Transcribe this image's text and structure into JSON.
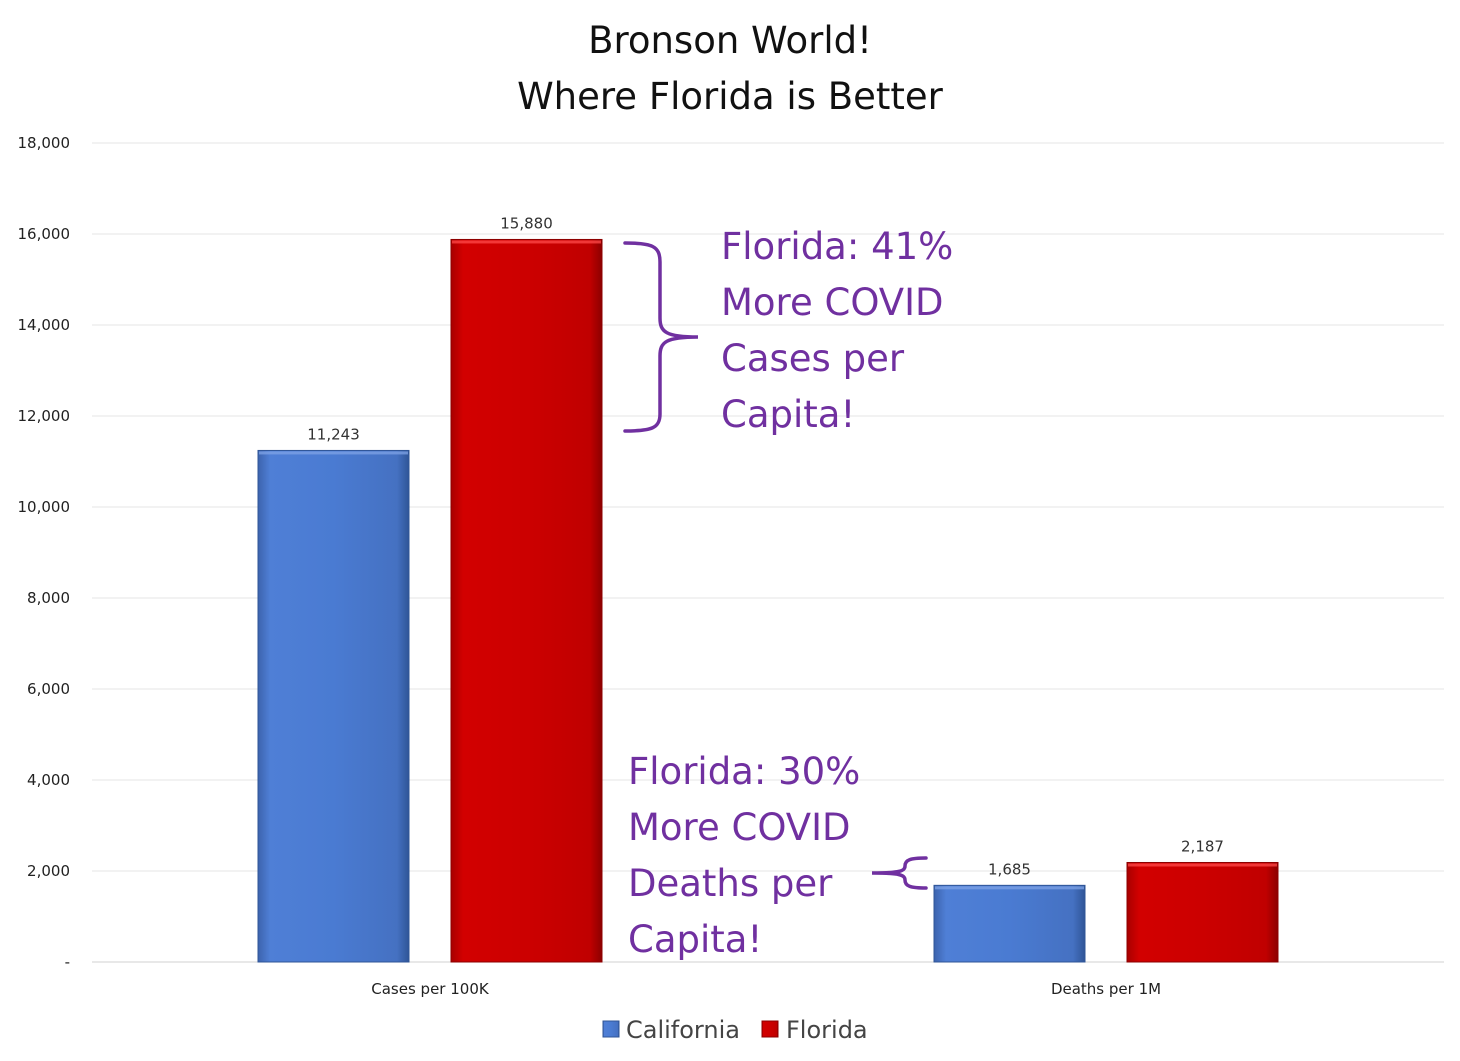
{
  "chart_data": {
    "type": "bar",
    "title_lines": [
      "Bronson World!",
      "Where Florida is Better"
    ],
    "categories": [
      "Cases per 100K",
      "Deaths per 1M"
    ],
    "series": [
      {
        "name": "California",
        "values": [
          11243,
          1685
        ],
        "labels": [
          "11,243",
          "1,685"
        ],
        "color": "#4472c4"
      },
      {
        "name": "Florida",
        "values": [
          15880,
          2187
        ],
        "labels": [
          "15,880",
          "2,187"
        ],
        "color": "#c00000"
      }
    ],
    "ylim": [
      0,
      18000
    ],
    "yticks": [
      {
        "value": 0,
        "label": "-"
      },
      {
        "value": 2000,
        "label": "2,000"
      },
      {
        "value": 4000,
        "label": "4,000"
      },
      {
        "value": 6000,
        "label": "6,000"
      },
      {
        "value": 8000,
        "label": "8,000"
      },
      {
        "value": 10000,
        "label": "10,000"
      },
      {
        "value": 12000,
        "label": "12,000"
      },
      {
        "value": 14000,
        "label": "14,000"
      },
      {
        "value": 16000,
        "label": "16,000"
      },
      {
        "value": 18000,
        "label": "18,000"
      }
    ],
    "grid": true,
    "legend": "bottom",
    "annotations": [
      {
        "lines": [
          "Florida: 41%",
          "More COVID",
          "Cases per",
          "Capita!"
        ],
        "color": "#7030a0"
      },
      {
        "lines": [
          "Florida: 30%",
          "More COVID",
          "Deaths per",
          "Capita!"
        ],
        "color": "#7030a0"
      }
    ]
  }
}
